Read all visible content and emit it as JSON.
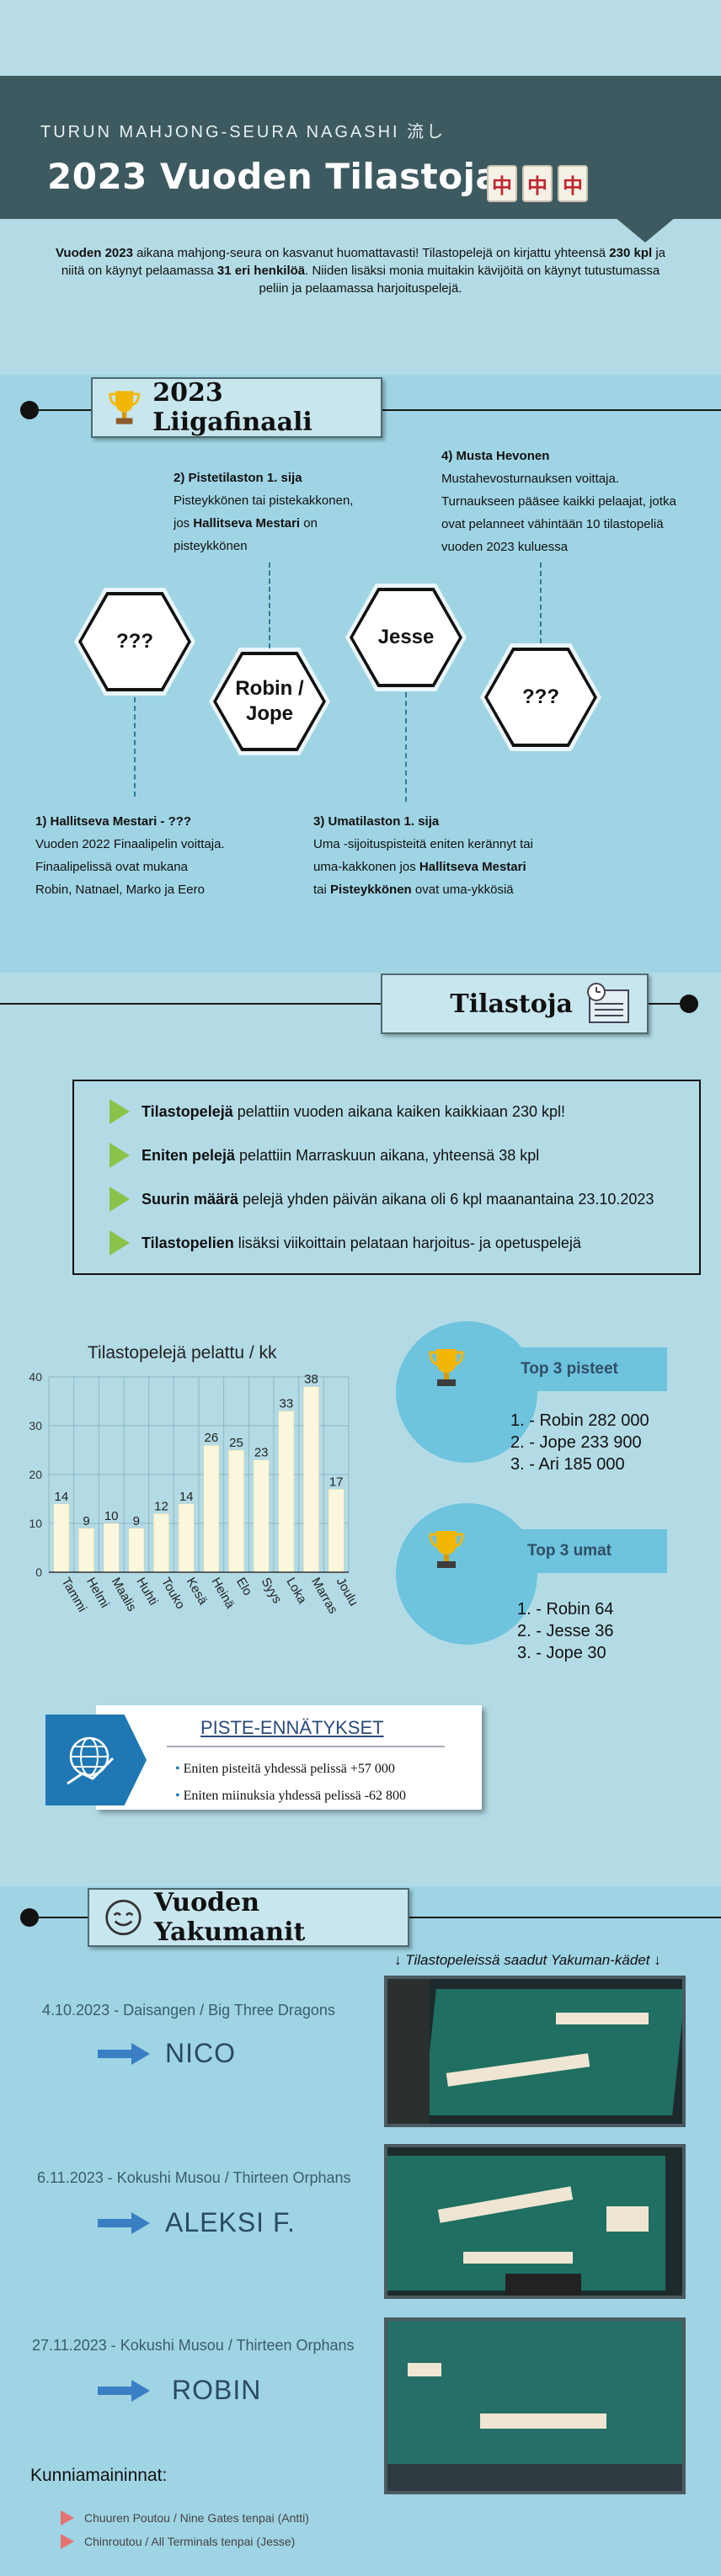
{
  "header": {
    "club": "TURUN MAHJONG-SEURA NAGASHI 流し",
    "title": "2023 Vuoden Tilastoja",
    "tiles": [
      "中",
      "中",
      "中"
    ],
    "intro_bold1": "Vuoden 2023",
    "intro_t1": " aikana mahjong-seura on kasvanut huomattavasti! Tilastopelejä on kirjattu yhteensä ",
    "intro_bold2": "230 kpl",
    "intro_t2": " ja niitä on käynyt pelaamassa ",
    "intro_bold3": "31 eri henkilöä",
    "intro_t3": ". Niiden lisäksi monia muitakin kävijöitä on käynyt tutustumassa peliin ja pelaamassa harjoituspelejä."
  },
  "liiga": {
    "title": "2023 Liigafinaali",
    "hexes": [
      "???",
      "Robin /\nJope",
      "Jesse",
      "???"
    ],
    "p1_title": "1) Hallitseva Mestari - ???",
    "p1_line1": "Vuoden 2022 Finaalipelin voittaja.",
    "p1_line2": "Finaalipelissä ovat mukana",
    "p1_line3": "Robin, Natnael, Marko ja Eero",
    "p2_title": "2) Pistetilaston 1. sija",
    "p2_line1": "Pisteykkönen tai pistekakkonen,",
    "p2_line2a": "jos ",
    "p2_line2b": "Hallitseva Mestari",
    "p2_line2c": " on",
    "p2_line3": "pisteykkönen",
    "p3_title": "3) Umatilaston 1. sija",
    "p3_line1": "Uma -sijoituspisteitä eniten kerännyt tai",
    "p3_line2a": "uma-kakkonen jos ",
    "p3_line2b": "Hallitseva Mestari",
    "p3_line3a": "tai ",
    "p3_line3b": "Pisteykkönen",
    "p3_line3c": " ovat uma-ykkösiä",
    "p4_title": "4) Musta Hevonen",
    "p4_line1": "Mustahevosturnauksen voittaja.",
    "p4_line2": "Turnaukseen pääsee kaikki pelaajat, jotka",
    "p4_line3": "ovat pelanneet vähintään 10 tilastopeliä",
    "p4_line4": "vuoden 2023 kuluessa"
  },
  "tilastot": {
    "title": "Tilastoja",
    "rows": [
      {
        "bold": "Tilastopelejä",
        "text": " pelattiin vuoden aikana kaiken kaikkiaan 230 kpl!"
      },
      {
        "bold": "Eniten pelejä",
        "text": " pelattiin Marraskuun aikana, yhteensä 38 kpl"
      },
      {
        "bold": "Suurin määrä",
        "text": " pelejä yhden päivän aikana oli 6 kpl maanantaina 23.10.2023"
      },
      {
        "bold": "Tilastopelien",
        "text": " lisäksi viikoittain pelataan harjoitus- ja opetuspelejä"
      }
    ],
    "top_points_title": "Top 3 pisteet",
    "top_points": [
      "1. - Robin 282 000",
      "2. - Jope 233 900",
      "3. - Ari 185 000"
    ],
    "top_uma_title": "Top 3 umat",
    "top_uma": [
      "1. - Robin 64",
      "2. - Jesse 36",
      "3. - Jope 30"
    ],
    "records_title": "PISTE-ENNÄTYKSET",
    "records": [
      "Eniten pisteitä yhdessä pelissä +57 000",
      "Eniten miinuksia yhdessä pelissä -62 800"
    ]
  },
  "chart_data": {
    "type": "bar",
    "title": "Tilastopelejä pelattu / kk",
    "categories": [
      "Tammi",
      "Helmi",
      "Maalis",
      "Huhti",
      "Touko",
      "Kesä",
      "Heinä",
      "Elo",
      "Syys",
      "Loka",
      "Marras",
      "Joulu"
    ],
    "values": [
      14,
      9,
      10,
      9,
      12,
      14,
      26,
      25,
      23,
      33,
      38,
      17
    ],
    "yticks": [
      0,
      10,
      20,
      30,
      40
    ],
    "ylim": [
      0,
      40
    ],
    "grid": true,
    "bar_color": "#fbf7dc"
  },
  "yakumanit": {
    "title": "Vuoden Yakumanit",
    "caption": "↓ Tilastopeleissä saadut Yakuman-kädet ↓",
    "items": [
      {
        "date": "4.10.2023 - Daisangen / Big Three Dragons",
        "name": "NICO"
      },
      {
        "date": "6.11.2023 - Kokushi Musou / Thirteen Orphans",
        "name": "ALEKSI F."
      },
      {
        "date": "27.11.2023 - Kokushi Musou / Thirteen Orphans",
        "name": "ROBIN"
      }
    ],
    "honorable_title": "Kunniamaininnat:",
    "honorable": [
      "Chuuren Poutou / Nine Gates tenpai (Antti)",
      "Chinroutou / All Terminals tenpai (Jesse)"
    ]
  }
}
